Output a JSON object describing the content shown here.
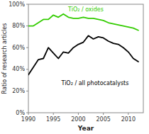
{
  "chart_data": {
    "type": "line",
    "xlabel": "Year",
    "ylabel": "Ratio of research articles",
    "x": [
      1990,
      1991,
      1992,
      1993,
      1994,
      1995,
      1996,
      1997,
      1998,
      1999,
      2000,
      2001,
      2002,
      2003,
      2004,
      2005,
      2006,
      2007,
      2008,
      2009,
      2010,
      2011,
      2012
    ],
    "series": [
      {
        "name": "TiO₂ / oxides",
        "color": "#33cc00",
        "values": [
          0.8,
          0.8,
          0.83,
          0.86,
          0.86,
          0.9,
          0.88,
          0.91,
          0.88,
          0.87,
          0.87,
          0.88,
          0.87,
          0.87,
          0.86,
          0.85,
          0.83,
          0.82,
          0.81,
          0.8,
          0.79,
          0.78,
          0.76
        ]
      },
      {
        "name": "TiO₂ / all photocatalysts",
        "color": "#000000",
        "values": [
          0.35,
          0.42,
          0.49,
          0.5,
          0.6,
          0.55,
          0.5,
          0.56,
          0.55,
          0.6,
          0.63,
          0.65,
          0.71,
          0.68,
          0.7,
          0.69,
          0.66,
          0.64,
          0.63,
          0.6,
          0.56,
          0.5,
          0.47
        ]
      }
    ],
    "xlim": [
      1990,
      2013
    ],
    "xticks": [
      1990,
      1995,
      2000,
      2005,
      2010
    ],
    "ylim": [
      0,
      1.0
    ],
    "yticks": [
      {
        "value": 0,
        "label": "0%"
      },
      {
        "value": 0.2,
        "label": "20%"
      },
      {
        "value": 0.4,
        "label": "40%"
      },
      {
        "value": 0.6,
        "label": "60%"
      },
      {
        "value": 0.8,
        "label": "80%"
      },
      {
        "value": 1.0,
        "label": "100%"
      }
    ]
  }
}
